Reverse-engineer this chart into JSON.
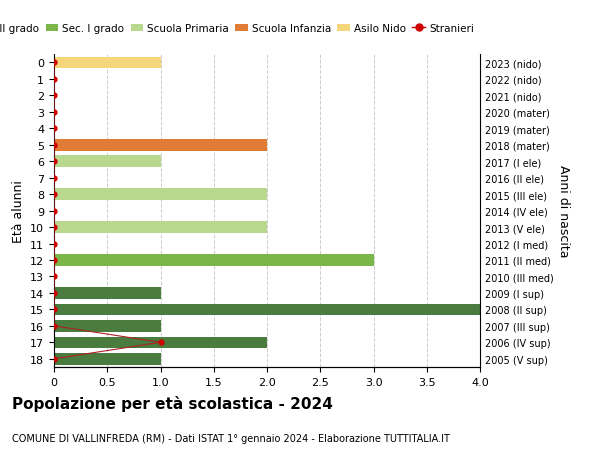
{
  "ages": [
    18,
    17,
    16,
    15,
    14,
    13,
    12,
    11,
    10,
    9,
    8,
    7,
    6,
    5,
    4,
    3,
    2,
    1,
    0
  ],
  "anni_nascita": [
    "2005 (V sup)",
    "2006 (IV sup)",
    "2007 (III sup)",
    "2008 (II sup)",
    "2009 (I sup)",
    "2010 (III med)",
    "2011 (II med)",
    "2012 (I med)",
    "2013 (V ele)",
    "2014 (IV ele)",
    "2015 (III ele)",
    "2016 (II ele)",
    "2017 (I ele)",
    "2018 (mater)",
    "2019 (mater)",
    "2020 (mater)",
    "2021 (nido)",
    "2022 (nido)",
    "2023 (nido)"
  ],
  "bar_values": [
    1,
    2,
    1,
    4,
    1,
    0,
    3,
    0,
    2,
    0,
    2,
    0,
    1,
    2,
    0,
    0,
    0,
    0,
    1
  ],
  "bar_colors": [
    "#4a7c3f",
    "#4a7c3f",
    "#4a7c3f",
    "#4a7c3f",
    "#4a7c3f",
    "#7ab648",
    "#7ab648",
    "#7ab648",
    "#b8d98d",
    "#b8d98d",
    "#b8d98d",
    "#b8d98d",
    "#b8d98d",
    "#e07c35",
    "#e07c35",
    "#e07c35",
    "#f5d67a",
    "#f5d67a",
    "#f5d67a"
  ],
  "stranieri_dots_x": [
    0,
    1,
    0,
    0,
    0,
    0,
    0,
    0,
    0,
    0,
    0,
    0,
    0,
    0,
    0,
    0,
    0,
    0,
    0
  ],
  "legend_labels": [
    "Sec. II grado",
    "Sec. I grado",
    "Scuola Primaria",
    "Scuola Infanzia",
    "Asilo Nido",
    "Stranieri"
  ],
  "legend_colors": [
    "#4a7c3f",
    "#7ab648",
    "#b8d98d",
    "#e07c35",
    "#f5d67a",
    "#cc0000"
  ],
  "title": "Popolazione per età scolastica - 2024",
  "subtitle": "COMUNE DI VALLINFREDA (RM) - Dati ISTAT 1° gennaio 2024 - Elaborazione TUTTITALIA.IT",
  "ylabel_left": "Età alunni",
  "ylabel_right": "Anni di nascita",
  "xlim": [
    0,
    4.0
  ],
  "xticks": [
    0,
    0.5,
    1.0,
    1.5,
    2.0,
    2.5,
    3.0,
    3.5,
    4.0
  ],
  "background_color": "#ffffff",
  "grid_color": "#cccccc",
  "stranieri_dot_color": "#cc0000",
  "stranieri_line_color": "#aa2222"
}
